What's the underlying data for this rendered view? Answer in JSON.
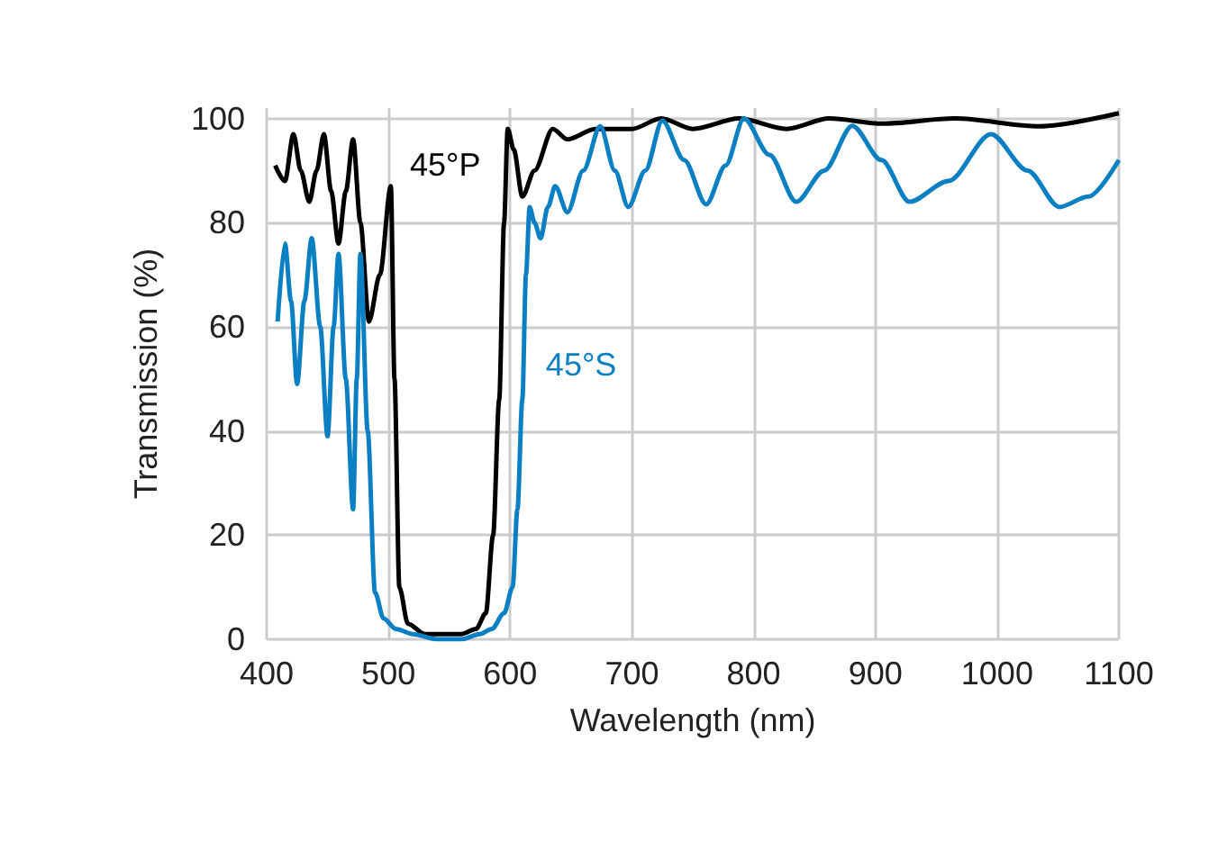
{
  "chart_data": {
    "type": "line",
    "xlabel": "Wavelength (nm)",
    "ylabel": "Transmission (%)",
    "xlim": [
      400,
      1100
    ],
    "xticks": [
      400,
      500,
      600,
      700,
      800,
      900,
      1000,
      1100
    ],
    "ylim": [
      0,
      102
    ],
    "yticks": [
      0,
      20,
      40,
      60,
      80,
      100
    ],
    "grid": true,
    "legend": false,
    "marker": "none",
    "line_style": "solid",
    "series": [
      {
        "name": "45°P",
        "color": "#000000",
        "x": [
          407,
          415,
          422,
          428,
          435,
          441,
          447,
          453,
          459,
          465,
          471,
          477,
          484,
          493,
          502,
          505,
          509,
          516,
          530,
          545,
          560,
          572,
          580,
          586,
          591,
          595,
          598,
          603,
          610,
          620,
          635,
          647,
          670,
          700,
          724,
          750,
          788,
          827,
          862,
          906,
          965,
          1035,
          1100
        ],
        "values": [
          91,
          88,
          97,
          90,
          84,
          90,
          97,
          86,
          76,
          86,
          96,
          80,
          61,
          70,
          87,
          50,
          10,
          3,
          1,
          1,
          1,
          2,
          5,
          20,
          46,
          80,
          98,
          94,
          85,
          90,
          98,
          96,
          98,
          98,
          100,
          98,
          100,
          98,
          100,
          99,
          100,
          98.5,
          101
        ]
      },
      {
        "name": "45°S",
        "color": "#0a7fc2",
        "x": [
          409,
          415,
          420,
          425,
          431,
          437,
          444,
          450,
          455,
          459,
          465,
          471,
          474,
          477,
          483,
          489,
          496,
          506,
          520,
          540,
          560,
          575,
          585,
          595,
          602,
          606,
          610,
          613,
          616,
          620,
          625,
          631,
          637,
          647,
          660,
          674,
          686,
          697,
          711,
          725,
          743,
          761,
          777,
          792,
          813,
          835,
          858,
          881,
          905,
          928,
          960,
          995,
          1025,
          1051,
          1075,
          1100
        ],
        "values": [
          61,
          76,
          65,
          49,
          65,
          77,
          60,
          39,
          60,
          74,
          50,
          25,
          50,
          74,
          40,
          9,
          4,
          2,
          1,
          0,
          0,
          1,
          2,
          5,
          10,
          25,
          46,
          70,
          83,
          80,
          77,
          83,
          87,
          82,
          90,
          98.5,
          90,
          83,
          90,
          99.6,
          92,
          83.5,
          91,
          100,
          93,
          84,
          90,
          98.6,
          92,
          84,
          88,
          97,
          90,
          83,
          85,
          92
        ]
      }
    ]
  }
}
